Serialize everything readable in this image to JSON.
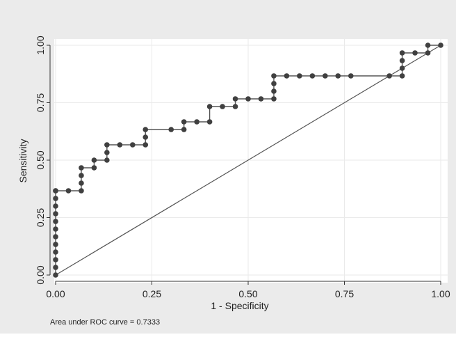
{
  "colors": {
    "outer_background": "#ebebeb",
    "plot_background": "#ffffff",
    "grid": "#eaeaea",
    "line": "#555555",
    "marker": "#404040"
  },
  "chart_data": {
    "type": "line",
    "title": "",
    "xlabel": "1 - Specificity",
    "ylabel": "Sensitivity",
    "xlim": [
      0,
      1
    ],
    "ylim": [
      0,
      1
    ],
    "xticks": [
      "0.00",
      "0.25",
      "0.50",
      "0.75",
      "1.00"
    ],
    "yticks": [
      "0.00",
      "0.25",
      "0.50",
      "0.75",
      "1.00"
    ],
    "grid": true,
    "legend": "none",
    "note": "Area under ROC curve = 0.7333",
    "reference_line": {
      "x": [
        0,
        1
      ],
      "y": [
        0,
        1
      ]
    },
    "series": [
      {
        "x": [
          0,
          0,
          0,
          0,
          0,
          0,
          0,
          0,
          0,
          0,
          0,
          0,
          0,
          0.0333,
          0.0667,
          0.0667,
          0.0667,
          0.0667,
          0.1,
          0.1,
          0.1333,
          0.1333,
          0.1333,
          0.1667,
          0.2,
          0.2333,
          0.2333,
          0.2333,
          0.3,
          0.3333,
          0.3333,
          0.3667,
          0.4,
          0.4,
          0.4333,
          0.4667,
          0.4667,
          0.5,
          0.5333,
          0.5667,
          0.5667,
          0.5667,
          0.5667,
          0.6,
          0.6333,
          0.6667,
          0.7,
          0.7333,
          0.7667,
          0.8667,
          0.9,
          0.9,
          0.9,
          0.9,
          0.9333,
          0.9667,
          0.9667,
          1
        ],
        "y": [
          0,
          0.0333,
          0.0667,
          0.1,
          0.1333,
          0.1667,
          0.2,
          0.2333,
          0.2667,
          0.3,
          0.3333,
          0.3667,
          0.3667,
          0.3667,
          0.3667,
          0.4,
          0.4333,
          0.4667,
          0.4667,
          0.5,
          0.5,
          0.5333,
          0.5667,
          0.5667,
          0.5667,
          0.5667,
          0.6,
          0.6333,
          0.6333,
          0.6333,
          0.6667,
          0.6667,
          0.6667,
          0.7333,
          0.7333,
          0.7333,
          0.7667,
          0.7667,
          0.7667,
          0.7667,
          0.8,
          0.8333,
          0.8667,
          0.8667,
          0.8667,
          0.8667,
          0.8667,
          0.8667,
          0.8667,
          0.8667,
          0.8667,
          0.9,
          0.9333,
          0.9667,
          0.9667,
          0.9667,
          1,
          1
        ]
      }
    ]
  }
}
